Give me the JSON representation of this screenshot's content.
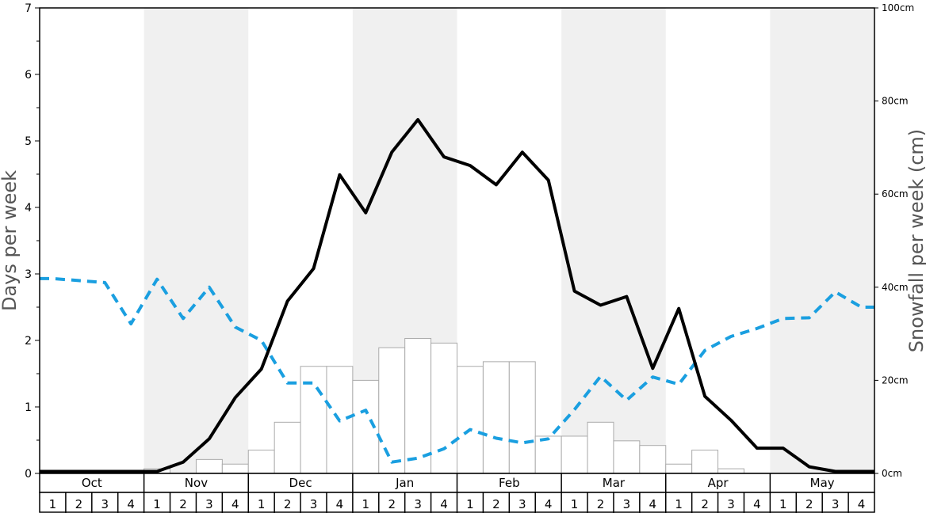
{
  "chart_data": {
    "type": "bar+line",
    "left_axis": {
      "label": "Days per week",
      "ylim": [
        0,
        7
      ],
      "ticks": [
        0,
        1,
        2,
        3,
        4,
        5,
        6,
        7
      ]
    },
    "right_axis": {
      "label": "Snowfall per week (cm)",
      "ylim": [
        0,
        100
      ],
      "ticks": [
        0,
        20,
        40,
        60,
        80,
        100
      ],
      "tick_labels": [
        "0cm",
        "20cm",
        "40cm",
        "60cm",
        "80cm",
        "100cm"
      ]
    },
    "months": [
      "Oct",
      "Nov",
      "Dec",
      "Jan",
      "Feb",
      "Mar",
      "Apr",
      "May"
    ],
    "week_labels": [
      "1",
      "2",
      "3",
      "4"
    ],
    "month_shading": [
      false,
      true,
      false,
      true,
      false,
      true,
      false,
      true
    ],
    "snowfall_cm": [
      0,
      0,
      0,
      0,
      1,
      0,
      3,
      2,
      5,
      11,
      23,
      23,
      20,
      27,
      29,
      28,
      23,
      24,
      24,
      8,
      8,
      11,
      7,
      6,
      2,
      5,
      1,
      0,
      0,
      0,
      0,
      0
    ],
    "snow_days_per_week": [
      0.03,
      0.03,
      0.03,
      0.03,
      0.03,
      0.17,
      0.52,
      1.14,
      1.57,
      2.59,
      3.08,
      4.49,
      3.92,
      4.83,
      5.32,
      4.76,
      4.63,
      4.34,
      4.83,
      4.41,
      2.74,
      2.53,
      2.66,
      1.58,
      2.48,
      1.16,
      0.8,
      0.38,
      0.38,
      0.1,
      0.03,
      0.03
    ],
    "other_days_per_week": [
      2.93,
      2.9,
      2.87,
      2.25,
      2.92,
      2.33,
      2.8,
      2.2,
      2.0,
      1.36,
      1.36,
      0.79,
      0.95,
      0.17,
      0.23,
      0.37,
      0.66,
      0.53,
      0.46,
      0.52,
      0.96,
      1.46,
      1.1,
      1.45,
      1.34,
      1.85,
      2.06,
      2.18,
      2.33,
      2.34,
      2.73,
      2.5
    ],
    "colors": {
      "bar_fill": "#ffffff",
      "bar_stroke": "#aaaaaa",
      "snow_days_line": "#000000",
      "other_line": "#1a9fe0",
      "shade": "#f0f0f0"
    }
  }
}
